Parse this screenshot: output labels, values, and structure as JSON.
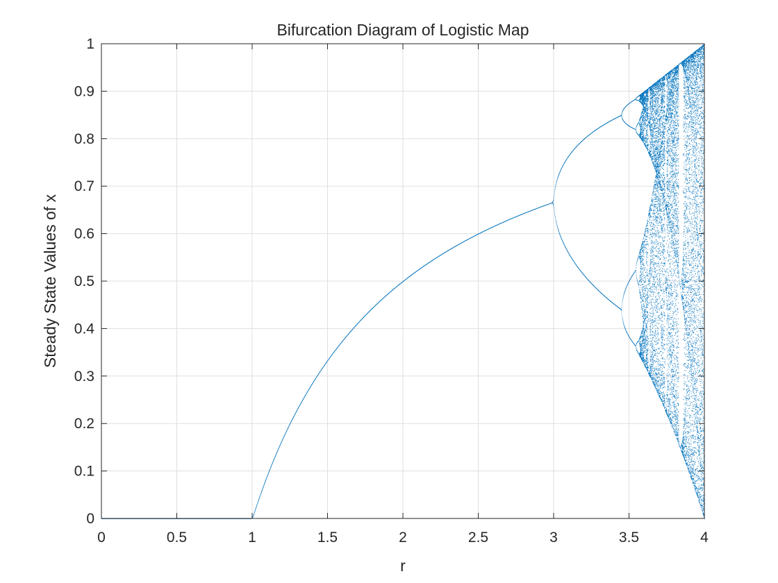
{
  "chart_data": {
    "type": "scatter",
    "title": "Bifurcation Diagram of Logistic Map",
    "xlabel": "r",
    "ylabel": "Steady State Values of x",
    "xlim": [
      0,
      4
    ],
    "ylim": [
      0,
      1
    ],
    "xticks": [
      0,
      0.5,
      1,
      1.5,
      2,
      2.5,
      3,
      3.5,
      4
    ],
    "yticks": [
      0,
      0.1,
      0.2,
      0.3,
      0.4,
      0.5,
      0.6,
      0.7,
      0.8,
      0.9,
      1
    ],
    "xtick_labels": [
      "0",
      "0.5",
      "1",
      "1.5",
      "2",
      "2.5",
      "3",
      "3.5",
      "4"
    ],
    "ytick_labels": [
      "0",
      "0.1",
      "0.2",
      "0.3",
      "0.4",
      "0.5",
      "0.6",
      "0.7",
      "0.8",
      "0.9",
      "1"
    ],
    "grid": true,
    "box": true,
    "marker": "dot",
    "series": [
      {
        "generator": "logistic map steady states x(n+1) = r*x(n)*(1 - x(n))",
        "r_range": [
          0,
          4
        ],
        "color": "#0072BD",
        "key_points": [
          {
            "r": 0,
            "x": 0
          },
          {
            "r": 1,
            "x": 0
          },
          {
            "r": 1.5,
            "x": 0.333
          },
          {
            "r": 2,
            "x": 0.5
          },
          {
            "r": 2.5,
            "x": 0.6
          },
          {
            "r": 3,
            "x": 0.667
          },
          {
            "r": 3.449,
            "x": 0.44
          },
          {
            "r": 3.449,
            "x": 0.85
          },
          {
            "r": 3.57,
            "x": 0.89
          },
          {
            "r": 4,
            "x": 0
          },
          {
            "r": 4,
            "x": 1
          }
        ]
      }
    ],
    "colors": {
      "series": "#0072BD",
      "grid": "#dfdfdf",
      "axis": "#262626",
      "background": "#ffffff"
    }
  }
}
